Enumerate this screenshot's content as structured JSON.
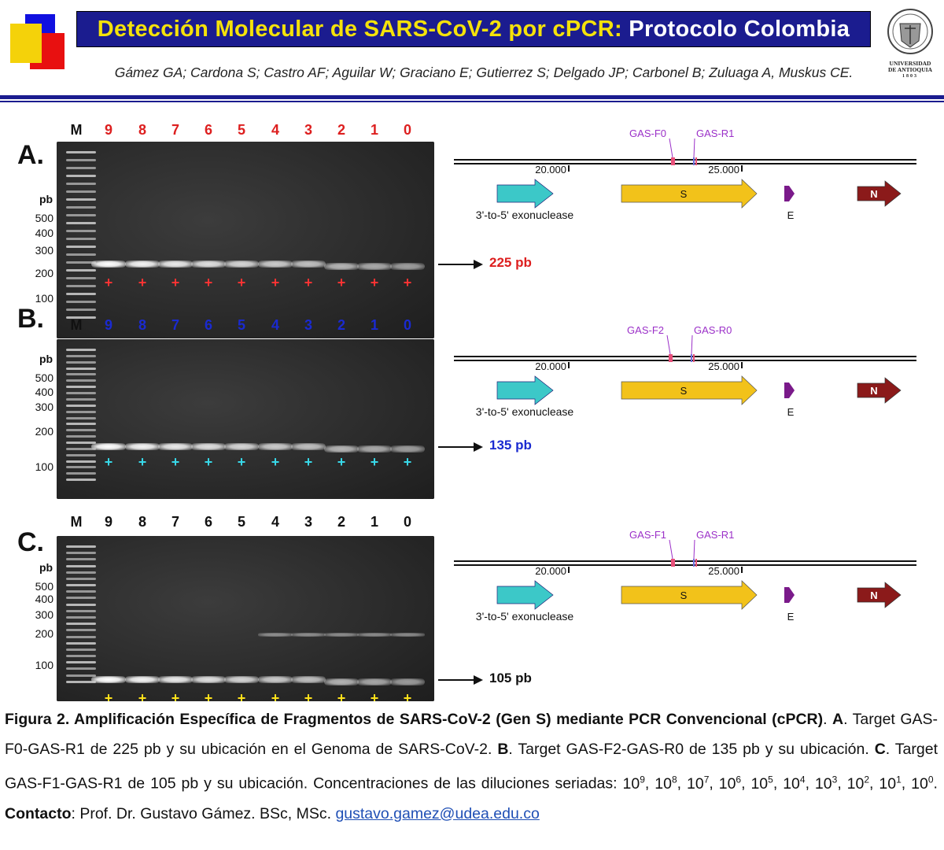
{
  "header": {
    "title_part1": "Detección Molecular de SARS-CoV-2 por cPCR:",
    "title_part2": "Protocolo Colombia",
    "authors": "Gámez GA; Cardona S; Castro AF; Aguilar W; Graciano E; Gutierrez S; Delgado JP; Carbonel B; Zuluaga A, Muskus CE.",
    "university_line1": "UNIVERSIDAD",
    "university_line2": "DE ANTIOQUIA",
    "university_year": "1803"
  },
  "lane_labels": [
    "M",
    "9",
    "8",
    "7",
    "6",
    "5",
    "4",
    "3",
    "2",
    "1",
    "0"
  ],
  "pb_heading": "pb",
  "panels": [
    {
      "letter": "A.",
      "label_color": "#dd1f1f",
      "plus_color": "#ff3333",
      "ticks": [
        "500",
        "400",
        "300",
        "200",
        "100"
      ],
      "size_label": "225 pb",
      "size_color": "#dd1f1f",
      "primer_f": "GAS-F0",
      "primer_r": "GAS-R1",
      "plus": "+"
    },
    {
      "letter": "B.",
      "label_color": "#1a2ad0",
      "plus_color": "#38d8e8",
      "ticks": [
        "500",
        "400",
        "300",
        "200",
        "100"
      ],
      "size_label": "135 pb",
      "size_color": "#1a2ad0",
      "primer_f": "GAS-F2",
      "primer_r": "GAS-R0",
      "plus": "+"
    },
    {
      "letter": "C.",
      "label_color": "#111111",
      "plus_color": "#ffe21a",
      "ticks": [
        "500",
        "400",
        "300",
        "200",
        "100"
      ],
      "size_label": "105 pb",
      "size_color": "#111111",
      "primer_f": "GAS-F1",
      "primer_r": "GAS-R1",
      "plus": "+"
    }
  ],
  "genome_map": {
    "pos1": "20.000",
    "pos2": "25.000",
    "gene_exo": "3'-to-5' exonuclease",
    "gene_s": "S",
    "gene_e": "E",
    "gene_n": "N"
  },
  "caption": {
    "fig_title": "Figura 2. Amplificación Específica de Fragmentos de SARS-CoV-2 (Gen S) mediante PCR Convencional (cPCR)",
    "a_letter": "A",
    "a_text": ". Target GAS-F0-GAS-R1 de 225 pb y su ubicación en el Genoma de SARS-CoV-2.",
    "b_letter": "B",
    "b_text": ". Target GAS-F2-GAS-R0 de 135 pb y su ubicación.",
    "c_letter": "C",
    "c_text": ". Target GAS-F1-GAS-R1 de 105 pb y su ubicación. Concentraciones de las diluciones seriadas:",
    "dilutions_base": "10",
    "dilutions_exps": [
      "9",
      "8",
      "7",
      "6",
      "5",
      "4",
      "3",
      "2",
      "1",
      "0"
    ],
    "contact_label": "Contacto",
    "contact_text": ": Prof. Dr. Gustavo Gámez. BSc, MSc.",
    "email": "gustavo.gamez@udea.edu.co"
  },
  "colors": {
    "navy": "#1b1c8f",
    "title_yellow": "#f5e20a",
    "primer_purple": "#9b30c8",
    "exo_cyan": "#3cc8c8",
    "s_yellow": "#f2c21a",
    "e_purple": "#7a1a8a",
    "n_maroon": "#8b1a1a"
  }
}
